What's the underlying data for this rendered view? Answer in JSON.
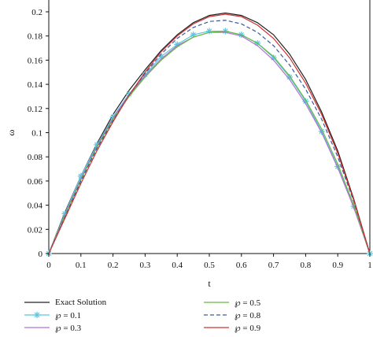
{
  "chart_data": {
    "type": "line",
    "title": "",
    "xlabel": "t",
    "ylabel": "ω",
    "xlim": [
      0,
      1
    ],
    "ylim": [
      0,
      0.2
    ],
    "xticks": [
      "0",
      "0.1",
      "0.2",
      "0.3",
      "0.4",
      "0.5",
      "0.6",
      "0.7",
      "0.8",
      "0.9",
      "1"
    ],
    "yticks": [
      "0",
      "0.02",
      "0.04",
      "0.06",
      "0.08",
      "0.1",
      "0.12",
      "0.14",
      "0.16",
      "0.18",
      "0.2"
    ],
    "grid": false,
    "legend_position": "bottom",
    "x": [
      0,
      0.05,
      0.1,
      0.15,
      0.2,
      0.25,
      0.3,
      0.35,
      0.4,
      0.45,
      0.5,
      0.55,
      0.6,
      0.65,
      0.7,
      0.75,
      0.8,
      0.85,
      0.9,
      0.95,
      1
    ],
    "series": [
      {
        "name": "Exact Solution",
        "color": "#222222",
        "dash": "",
        "marker": "",
        "values": [
          0,
          0.034,
          0.064,
          0.091,
          0.115,
          0.135,
          0.152,
          0.168,
          0.181,
          0.191,
          0.197,
          0.199,
          0.197,
          0.191,
          0.181,
          0.165,
          0.144,
          0.117,
          0.085,
          0.045,
          0
        ]
      },
      {
        "name": "℘ = 0.1",
        "color": "#5bc8e0",
        "dash": "",
        "marker": "star",
        "values": [
          0,
          0.033,
          0.064,
          0.09,
          0.113,
          0.132,
          0.148,
          0.163,
          0.173,
          0.181,
          0.184,
          0.184,
          0.181,
          0.174,
          0.162,
          0.146,
          0.126,
          0.101,
          0.072,
          0.039,
          0
        ]
      },
      {
        "name": "℘ = 0.3",
        "color": "#b070d0",
        "dash": "",
        "marker": "",
        "values": [
          0,
          0.032,
          0.062,
          0.089,
          0.112,
          0.131,
          0.147,
          0.161,
          0.172,
          0.179,
          0.183,
          0.183,
          0.18,
          0.172,
          0.16,
          0.144,
          0.124,
          0.1,
          0.071,
          0.038,
          0
        ]
      },
      {
        "name": "℘ = 0.5",
        "color": "#66bb44",
        "dash": "",
        "marker": "",
        "values": [
          0,
          0.031,
          0.061,
          0.088,
          0.111,
          0.13,
          0.146,
          0.16,
          0.171,
          0.179,
          0.183,
          0.184,
          0.181,
          0.174,
          0.163,
          0.147,
          0.127,
          0.103,
          0.074,
          0.04,
          0
        ]
      },
      {
        "name": "℘ = 0.8",
        "color": "#3a5aa0",
        "dash": "5,3",
        "marker": "",
        "values": [
          0,
          0.03,
          0.06,
          0.087,
          0.11,
          0.131,
          0.149,
          0.165,
          0.178,
          0.187,
          0.192,
          0.193,
          0.19,
          0.183,
          0.172,
          0.156,
          0.136,
          0.111,
          0.08,
          0.043,
          0
        ]
      },
      {
        "name": "℘ = 0.9",
        "color": "#d03030",
        "dash": "",
        "marker": "",
        "values": [
          0,
          0.029,
          0.058,
          0.085,
          0.109,
          0.131,
          0.15,
          0.167,
          0.18,
          0.19,
          0.196,
          0.198,
          0.196,
          0.189,
          0.178,
          0.162,
          0.141,
          0.115,
          0.083,
          0.044,
          0
        ]
      }
    ]
  }
}
